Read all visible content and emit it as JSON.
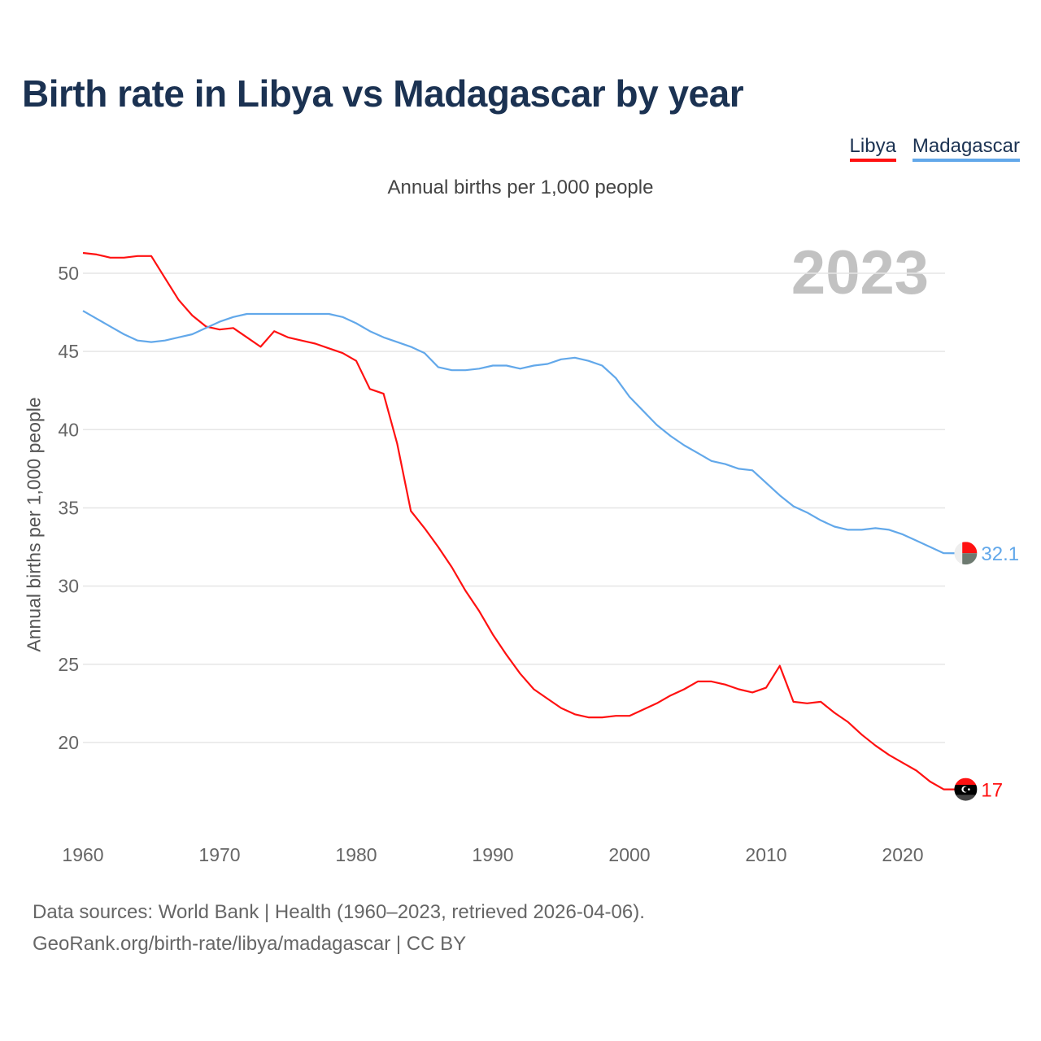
{
  "title": "Birth rate in Libya vs Madagascar by year",
  "legend": [
    {
      "label": "Libya",
      "color": "#ff1111"
    },
    {
      "label": "Madagascar",
      "color": "#62a8ea"
    }
  ],
  "subtitle": "Annual births per 1,000 people",
  "year_watermark": "2023",
  "source_line1": "Data sources: World Bank | Health (1960–2023, retrieved 2026-04-06).",
  "source_line2": "GeoRank.org/birth-rate/libya/madagascar | CC BY",
  "chart_data": {
    "type": "line",
    "title": "Birth rate in Libya vs Madagascar by year",
    "xlabel": "",
    "ylabel": "Annual births per 1,000 people",
    "xlim": [
      1960,
      2023
    ],
    "ylim": [
      15.5,
      52
    ],
    "xticks": [
      1960,
      1970,
      1980,
      1990,
      2000,
      2010,
      2020
    ],
    "yticks": [
      20,
      25,
      30,
      35,
      40,
      45,
      50
    ],
    "grid": true,
    "legend_position": "top-right",
    "x_start": 1960,
    "series": [
      {
        "name": "Libya",
        "color": "#ff1111",
        "end_label": "17",
        "values": [
          51.3,
          51.2,
          51.0,
          51.0,
          51.1,
          51.1,
          49.7,
          48.3,
          47.3,
          46.6,
          46.4,
          46.5,
          45.9,
          45.3,
          46.3,
          45.9,
          45.7,
          45.5,
          45.2,
          44.9,
          44.4,
          42.6,
          42.3,
          39.1,
          34.8,
          33.7,
          32.5,
          31.2,
          29.7,
          28.4,
          26.9,
          25.6,
          24.4,
          23.4,
          22.8,
          22.2,
          21.8,
          21.6,
          21.6,
          21.7,
          21.7,
          22.1,
          22.5,
          23.0,
          23.4,
          23.9,
          23.9,
          23.7,
          23.4,
          23.2,
          23.5,
          24.9,
          22.6,
          22.5,
          22.6,
          21.9,
          21.3,
          20.5,
          19.8,
          19.2,
          18.7,
          18.2,
          17.5,
          17.0
        ]
      },
      {
        "name": "Madagascar",
        "color": "#62a8ea",
        "end_label": "32.1",
        "values": [
          47.6,
          47.1,
          46.6,
          46.1,
          45.7,
          45.6,
          45.7,
          45.9,
          46.1,
          46.5,
          46.9,
          47.2,
          47.4,
          47.4,
          47.4,
          47.4,
          47.4,
          47.4,
          47.4,
          47.2,
          46.8,
          46.3,
          45.9,
          45.6,
          45.3,
          44.9,
          44.0,
          43.8,
          43.8,
          43.9,
          44.1,
          44.1,
          43.9,
          44.1,
          44.2,
          44.5,
          44.6,
          44.4,
          44.1,
          43.3,
          42.1,
          41.2,
          40.3,
          39.6,
          39.0,
          38.5,
          38.0,
          37.8,
          37.5,
          37.4,
          36.6,
          35.8,
          35.1,
          34.7,
          34.2,
          33.8,
          33.6,
          33.6,
          33.7,
          33.6,
          33.3,
          32.9,
          32.5,
          32.1
        ]
      }
    ]
  }
}
